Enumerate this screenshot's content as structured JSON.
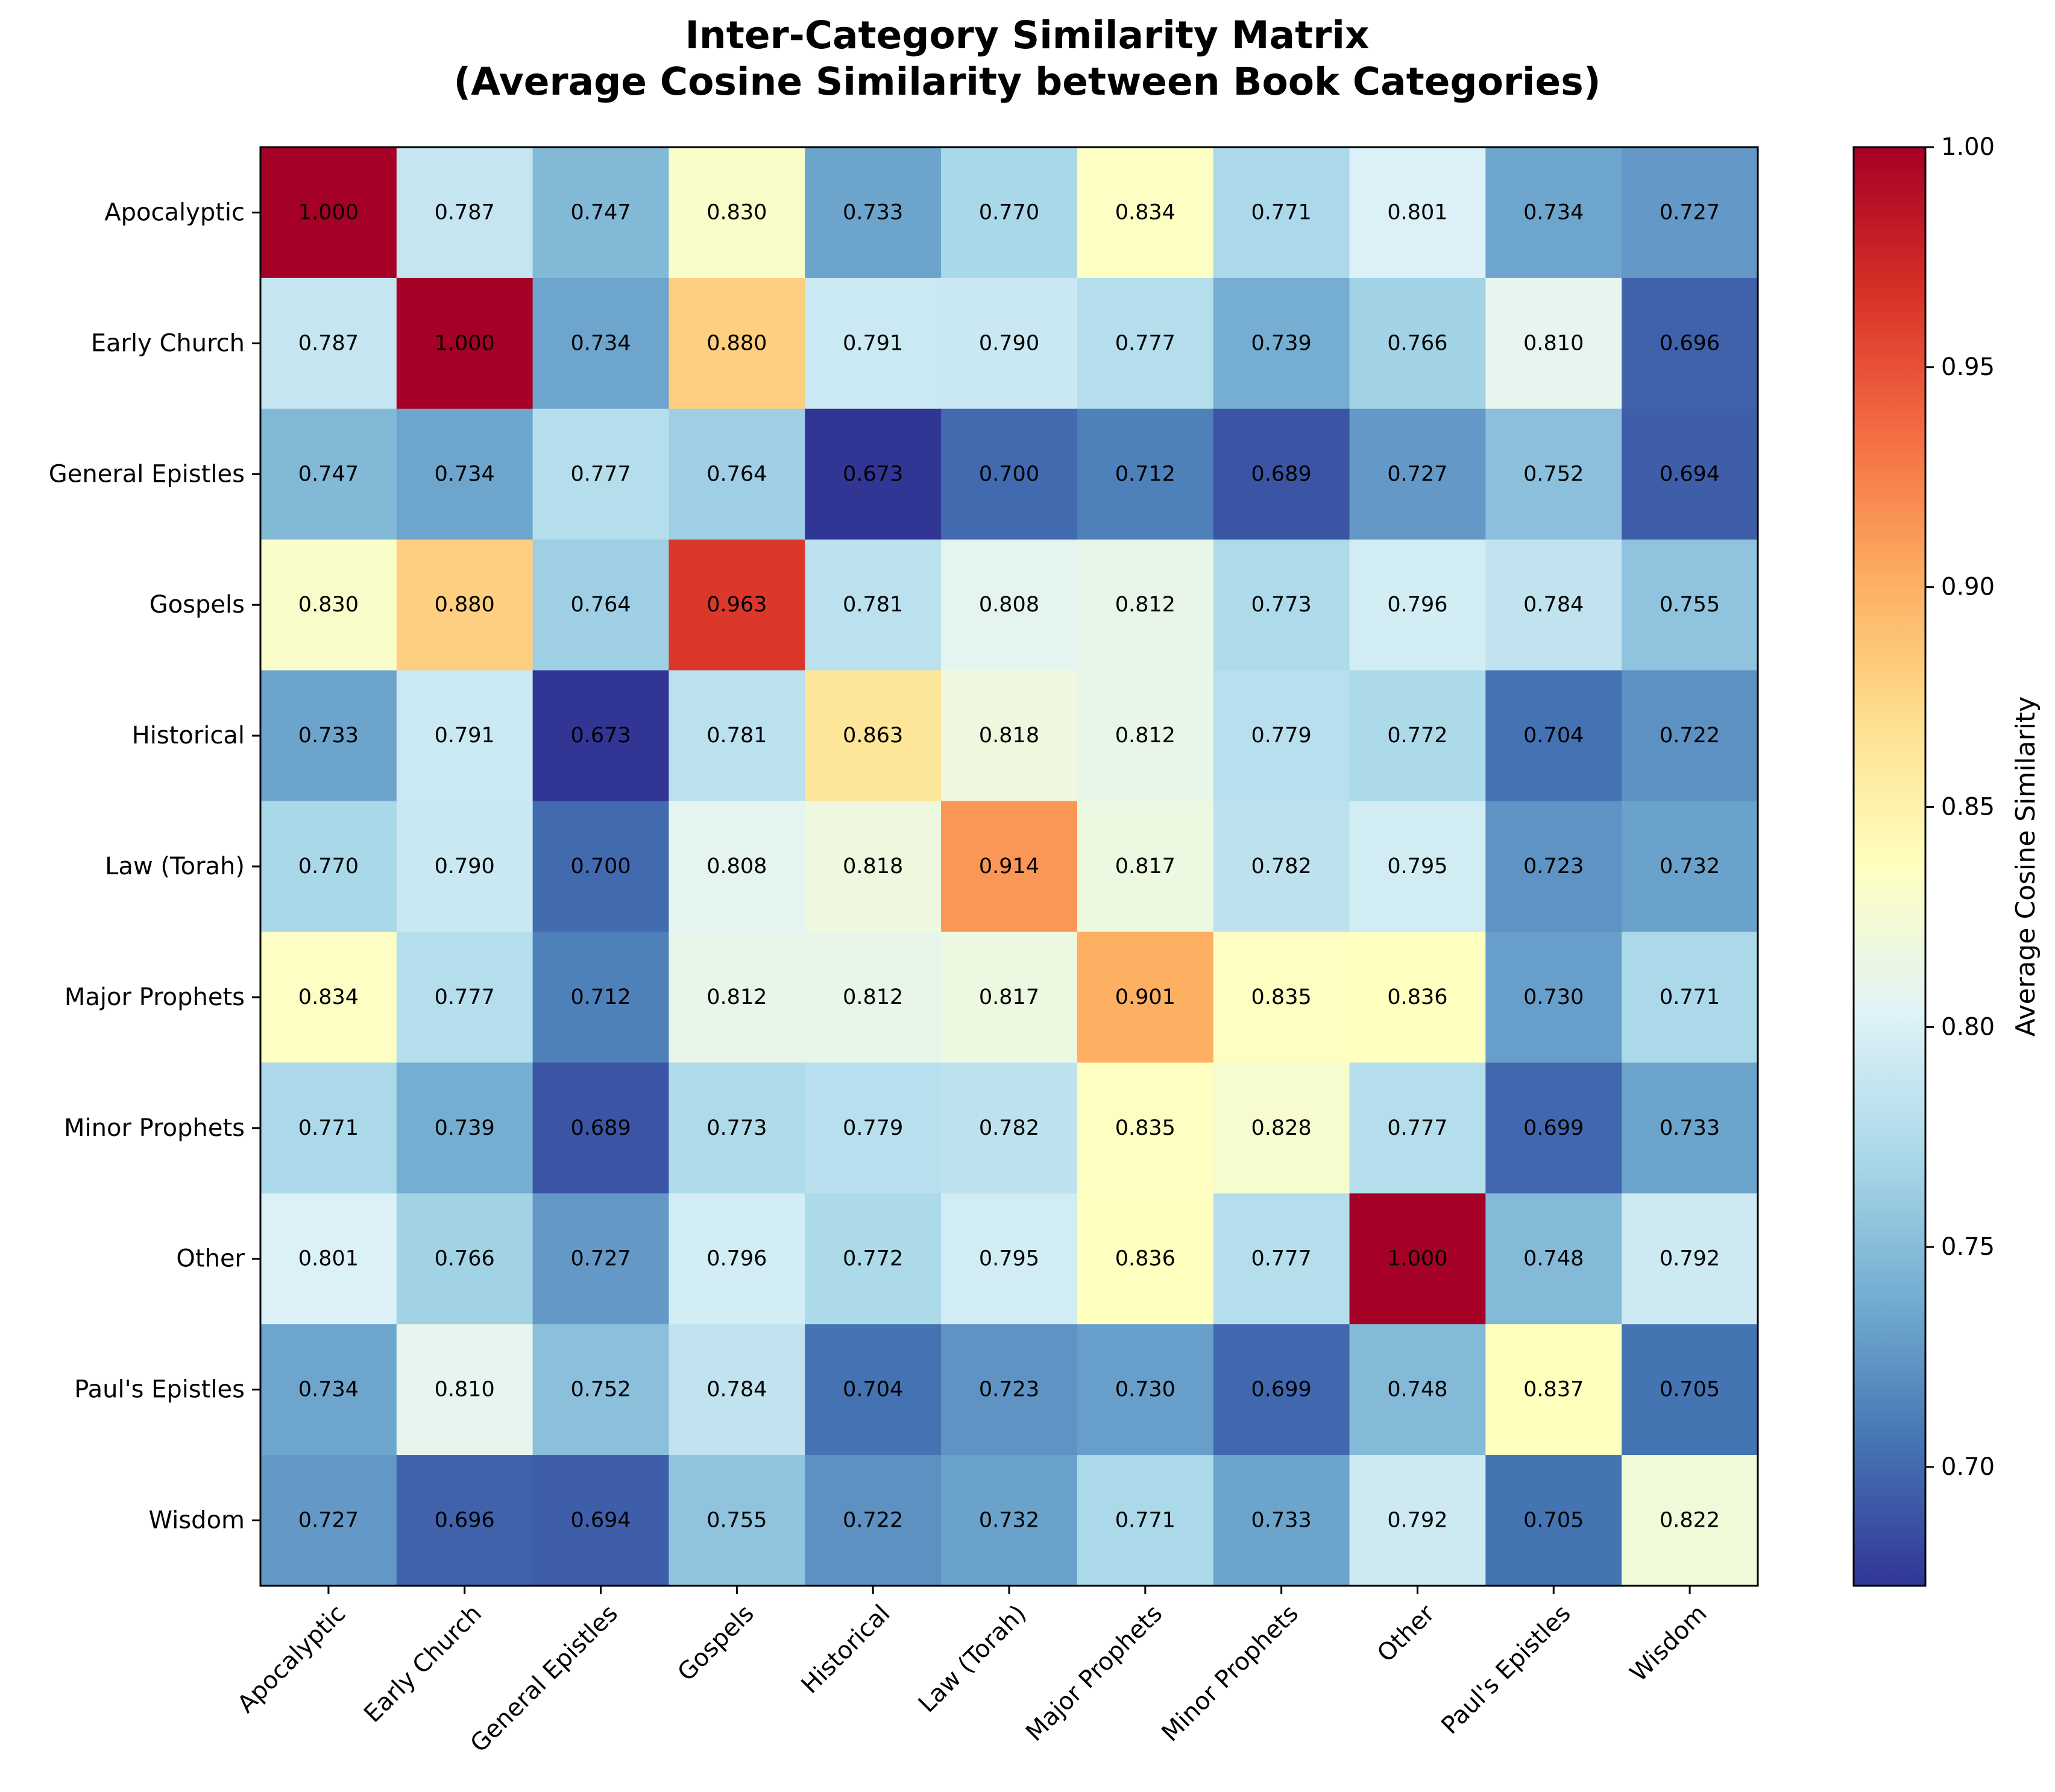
{
  "chart_data": {
    "type": "heatmap",
    "title_lines": [
      "Inter-Category Similarity Matrix",
      "(Average Cosine Similarity between Book Categories)"
    ],
    "categories": [
      "Apocalyptic",
      "Early Church",
      "General Epistles",
      "Gospels",
      "Historical",
      "Law (Torah)",
      "Major Prophets",
      "Minor Prophets",
      "Other",
      "Paul's Epistles",
      "Wisdom"
    ],
    "values": [
      [
        1.0,
        0.787,
        0.747,
        0.83,
        0.733,
        0.77,
        0.834,
        0.771,
        0.801,
        0.734,
        0.727
      ],
      [
        0.787,
        1.0,
        0.734,
        0.88,
        0.791,
        0.79,
        0.777,
        0.739,
        0.766,
        0.81,
        0.696
      ],
      [
        0.747,
        0.734,
        0.777,
        0.764,
        0.673,
        0.7,
        0.712,
        0.689,
        0.727,
        0.752,
        0.694
      ],
      [
        0.83,
        0.88,
        0.764,
        0.963,
        0.781,
        0.808,
        0.812,
        0.773,
        0.796,
        0.784,
        0.755
      ],
      [
        0.733,
        0.791,
        0.673,
        0.781,
        0.863,
        0.818,
        0.812,
        0.779,
        0.772,
        0.704,
        0.722
      ],
      [
        0.77,
        0.79,
        0.7,
        0.808,
        0.818,
        0.914,
        0.817,
        0.782,
        0.795,
        0.723,
        0.732
      ],
      [
        0.834,
        0.777,
        0.712,
        0.812,
        0.812,
        0.817,
        0.901,
        0.835,
        0.836,
        0.73,
        0.771
      ],
      [
        0.771,
        0.739,
        0.689,
        0.773,
        0.779,
        0.782,
        0.835,
        0.828,
        0.777,
        0.699,
        0.733
      ],
      [
        0.801,
        0.766,
        0.727,
        0.796,
        0.772,
        0.795,
        0.836,
        0.777,
        1.0,
        0.748,
        0.792
      ],
      [
        0.734,
        0.81,
        0.752,
        0.784,
        0.704,
        0.723,
        0.73,
        0.699,
        0.748,
        0.837,
        0.705
      ],
      [
        0.727,
        0.696,
        0.694,
        0.755,
        0.722,
        0.732,
        0.771,
        0.733,
        0.792,
        0.705,
        0.822
      ]
    ],
    "value_format_decimals": 3,
    "colormap": "RdYlBu_r",
    "colorbar": {
      "label": "Average Cosine Similarity",
      "range": [
        0.673,
        1.0
      ],
      "ticks": [
        0.7,
        0.75,
        0.8,
        0.85,
        0.9,
        0.95,
        1.0
      ],
      "tick_labels": [
        "0.70",
        "0.75",
        "0.80",
        "0.85",
        "0.90",
        "0.95",
        "1.00"
      ]
    },
    "grid": false,
    "legend": "colorbar-right"
  }
}
